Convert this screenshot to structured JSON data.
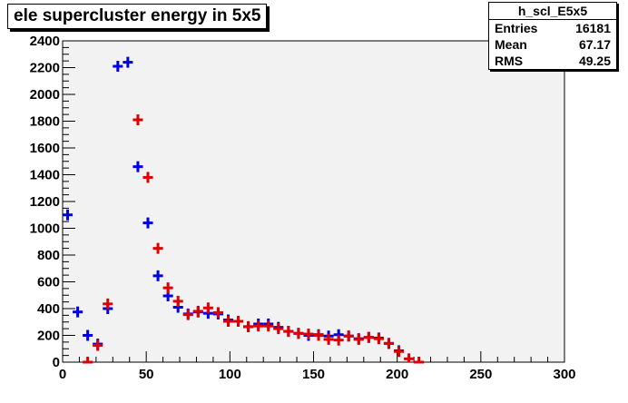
{
  "stats": {
    "name": "h_scl_E5x5",
    "rows": [
      {
        "label": "Entries",
        "value": "16181"
      },
      {
        "label": "Mean",
        "value": "67.17"
      },
      {
        "label": "RMS",
        "value": "49.25"
      }
    ]
  },
  "chart_data": {
    "type": "scatter",
    "title": "ele supercluster energy in 5x5",
    "xlabel": "",
    "ylabel": "",
    "xlim": [
      0,
      300
    ],
    "ylim": [
      0,
      2400
    ],
    "bin_width": 6,
    "x_ticks": [
      0,
      50,
      100,
      150,
      200,
      250,
      300
    ],
    "y_ticks": [
      0,
      200,
      400,
      600,
      800,
      1000,
      1200,
      1400,
      1600,
      1800,
      2000,
      2200,
      2400
    ],
    "grid": false,
    "colors": {
      "series_blue": "#0000dd",
      "series_red": "#dd0000",
      "frame_bg": "#f2f2f2"
    },
    "series": [
      {
        "color": "#0000dd",
        "x": [
          3,
          9,
          15,
          21,
          27,
          33,
          39,
          45,
          51,
          57,
          63,
          69,
          75,
          81,
          87,
          93,
          99,
          105,
          111,
          117,
          123,
          129,
          135,
          141,
          147,
          153,
          159,
          165,
          171,
          177,
          183,
          189,
          195,
          201
        ],
        "y": [
          1100,
          375,
          200,
          135,
          400,
          2210,
          2240,
          1460,
          1040,
          645,
          495,
          410,
          360,
          375,
          365,
          360,
          315,
          305,
          265,
          285,
          285,
          260,
          230,
          215,
          200,
          205,
          195,
          205,
          195,
          175,
          185,
          180,
          140,
          85
        ]
      },
      {
        "color": "#dd0000",
        "x": [
          15,
          21,
          27,
          45,
          51,
          57,
          63,
          69,
          75,
          81,
          87,
          93,
          99,
          105,
          111,
          117,
          123,
          129,
          135,
          141,
          147,
          153,
          159,
          165,
          171,
          177,
          183,
          189,
          195,
          201,
          207,
          213
        ],
        "y": [
          0,
          125,
          435,
          1810,
          1380,
          850,
          555,
          455,
          355,
          380,
          405,
          370,
          305,
          305,
          265,
          270,
          270,
          250,
          230,
          215,
          210,
          200,
          170,
          165,
          195,
          170,
          185,
          175,
          140,
          80,
          25,
          0
        ]
      }
    ]
  }
}
